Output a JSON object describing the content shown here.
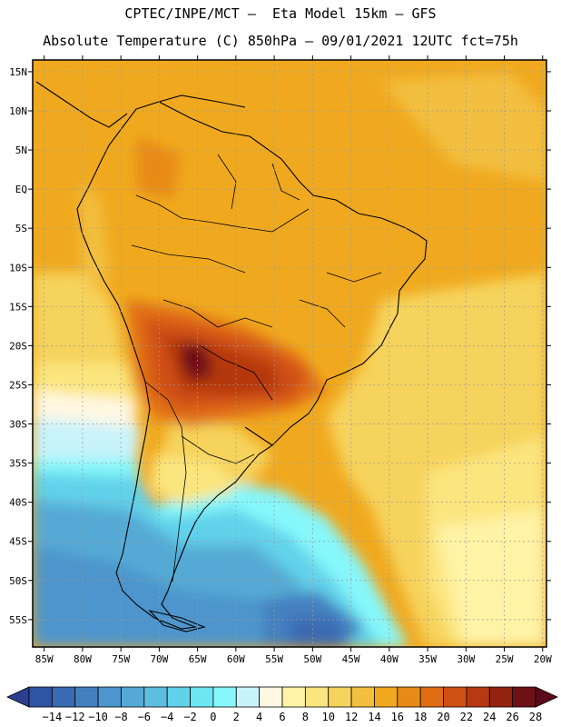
{
  "header": {
    "line1": "CPTEC/INPE/MCT –  Eta Model 15km – GFS",
    "line2": "Absolute Temperature (C) 850hPa – 09/01/2021 12UTC fct=75h"
  },
  "map": {
    "lat_labels": [
      "15N",
      "10N",
      "5N",
      "EQ",
      "5S",
      "10S",
      "15S",
      "20S",
      "25S",
      "30S",
      "35S",
      "40S",
      "45S",
      "50S",
      "55S"
    ],
    "lon_labels": [
      "85W",
      "80W",
      "75W",
      "70W",
      "65W",
      "60W",
      "55W",
      "50W",
      "45W",
      "40W",
      "35W",
      "30W",
      "25W",
      "20W"
    ],
    "lat_range": [
      16.5,
      -58.5
    ],
    "lon_range": [
      -86.5,
      -19.5
    ]
  },
  "colorbar": {
    "labels": [
      "-14",
      "-12",
      "-10",
      "-8",
      "-6",
      "-4",
      "-2",
      "0",
      "2",
      "4",
      "6",
      "8",
      "10",
      "12",
      "14",
      "16",
      "18",
      "20",
      "22",
      "24",
      "26",
      "28"
    ],
    "colors": [
      "#2e55a1",
      "#3a6bb3",
      "#4480c0",
      "#4d95cc",
      "#55aad5",
      "#5cbfe0",
      "#62d2ea",
      "#6be6f2",
      "#86f7fa",
      "#c9f3fb",
      "#fff7e2",
      "#fff3a6",
      "#fbe57e",
      "#f6d35c",
      "#f3bf3f",
      "#f0a91e",
      "#e88b16",
      "#e06d14",
      "#cf5013",
      "#b53911",
      "#942312",
      "#6e1116"
    ],
    "under_color": "#2a3f8f",
    "over_color": "#5c0a1a"
  }
}
